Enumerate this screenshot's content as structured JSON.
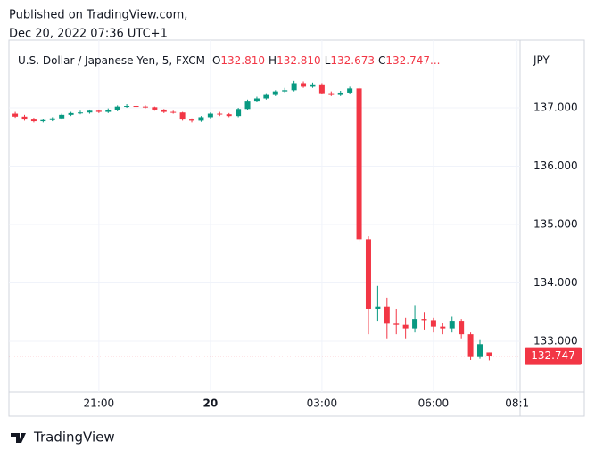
{
  "header": {
    "published": "Published on TradingView.com,",
    "timestamp": "Dec 20, 2022 07:36 UTC+1"
  },
  "footer": {
    "brand": "TradingView"
  },
  "chart_data": {
    "type": "candlestick",
    "title": "U.S. Dollar / Japanese Yen, 5, FXCM",
    "currency": "JPY",
    "ohlc": {
      "o_label": "O",
      "open": {
        "value": 132.81,
        "label": "132.810"
      },
      "h_label": "H",
      "high": {
        "value": 132.81,
        "label": "132.810"
      },
      "l_label": "L",
      "low": {
        "value": 132.673,
        "label": "132.673"
      },
      "c_label": "C",
      "close": {
        "value": 132.747,
        "label": "132.747"
      },
      "ellipsis": "..."
    },
    "last_price": {
      "value": 132.747,
      "label": "132.747"
    },
    "up_color": "#089981",
    "down_color": "#f23645",
    "grid": true,
    "xlim": [
      -5.42,
      8.33
    ],
    "ylim": [
      132.13,
      138.16
    ],
    "xticks": [
      {
        "value": -3,
        "label": "21:00"
      },
      {
        "value": 0,
        "label": "20"
      },
      {
        "value": 3,
        "label": "03:00"
      },
      {
        "value": 6,
        "label": "06:00"
      },
      {
        "value": 8.25,
        "label": "08:1"
      }
    ],
    "yticks": [
      {
        "value": 133,
        "label": "133.000"
      },
      {
        "value": 134,
        "label": "134.000"
      },
      {
        "value": 135,
        "label": "135.000"
      },
      {
        "value": 136,
        "label": "136.000"
      },
      {
        "value": 137,
        "label": "137.000"
      }
    ],
    "x": [
      -5.25,
      -5,
      -4.75,
      -4.5,
      -4.25,
      -4,
      -3.75,
      -3.5,
      -3.25,
      -3,
      -2.75,
      -2.5,
      -2.25,
      -2,
      -1.75,
      -1.5,
      -1.25,
      -1,
      -0.75,
      -0.5,
      -0.25,
      0,
      0.25,
      0.5,
      0.75,
      1,
      1.25,
      1.5,
      1.75,
      2,
      2.25,
      2.5,
      2.75,
      3,
      3.25,
      3.5,
      3.75,
      4,
      4.25,
      4.5,
      4.75,
      5,
      5.25,
      5.5,
      5.75,
      6,
      6.25,
      6.5,
      6.75,
      7,
      7.25,
      7.5
    ],
    "open": [
      136.9,
      136.85,
      136.8,
      136.77,
      136.79,
      136.82,
      136.88,
      136.91,
      136.92,
      136.95,
      136.93,
      136.96,
      137.02,
      137.03,
      137.02,
      137.01,
      136.97,
      136.93,
      136.92,
      136.8,
      136.78,
      136.84,
      136.9,
      136.89,
      136.86,
      136.98,
      137.12,
      137.16,
      137.22,
      137.28,
      137.3,
      137.42,
      137.36,
      137.4,
      137.25,
      137.22,
      137.26,
      137.33,
      134.75,
      133.55,
      133.6,
      133.3,
      133.28,
      133.22,
      133.38,
      133.36,
      133.25,
      133.22,
      133.35,
      133.12,
      132.73,
      132.81
    ],
    "high": [
      136.93,
      136.88,
      136.83,
      136.81,
      136.84,
      136.9,
      136.93,
      136.95,
      136.97,
      136.97,
      136.99,
      137.04,
      137.06,
      137.05,
      137.04,
      137.02,
      136.98,
      136.95,
      136.93,
      136.82,
      136.86,
      136.92,
      136.93,
      136.91,
      137.0,
      137.14,
      137.19,
      137.25,
      137.3,
      137.34,
      137.46,
      137.45,
      137.43,
      137.42,
      137.28,
      137.29,
      137.36,
      137.36,
      134.8,
      133.95,
      133.75,
      133.55,
      133.4,
      133.62,
      133.5,
      133.4,
      133.32,
      133.42,
      133.38,
      133.15,
      133.02,
      132.81
    ],
    "low": [
      136.83,
      136.78,
      136.75,
      136.75,
      136.77,
      136.8,
      136.86,
      136.89,
      136.9,
      136.91,
      136.91,
      136.94,
      137.0,
      137.0,
      136.99,
      136.95,
      136.91,
      136.9,
      136.78,
      136.75,
      136.76,
      136.82,
      136.86,
      136.84,
      136.84,
      136.96,
      137.1,
      137.14,
      137.2,
      137.26,
      137.28,
      137.34,
      137.34,
      137.23,
      137.2,
      137.2,
      137.24,
      134.7,
      133.12,
      133.35,
      133.05,
      133.12,
      133.05,
      133.15,
      133.2,
      133.15,
      133.12,
      133.15,
      133.05,
      132.68,
      132.7,
      132.673
    ],
    "close": [
      136.85,
      136.8,
      136.77,
      136.79,
      136.82,
      136.88,
      136.91,
      136.92,
      136.95,
      136.93,
      136.96,
      137.02,
      137.03,
      137.02,
      137.01,
      136.97,
      136.93,
      136.92,
      136.8,
      136.78,
      136.84,
      136.9,
      136.89,
      136.86,
      136.98,
      137.12,
      137.16,
      137.22,
      137.28,
      137.3,
      137.42,
      137.36,
      137.4,
      137.25,
      137.22,
      137.26,
      137.33,
      134.75,
      133.55,
      133.6,
      133.3,
      133.28,
      133.22,
      133.38,
      133.36,
      133.25,
      133.22,
      133.35,
      133.12,
      132.73,
      132.95,
      132.747
    ]
  }
}
